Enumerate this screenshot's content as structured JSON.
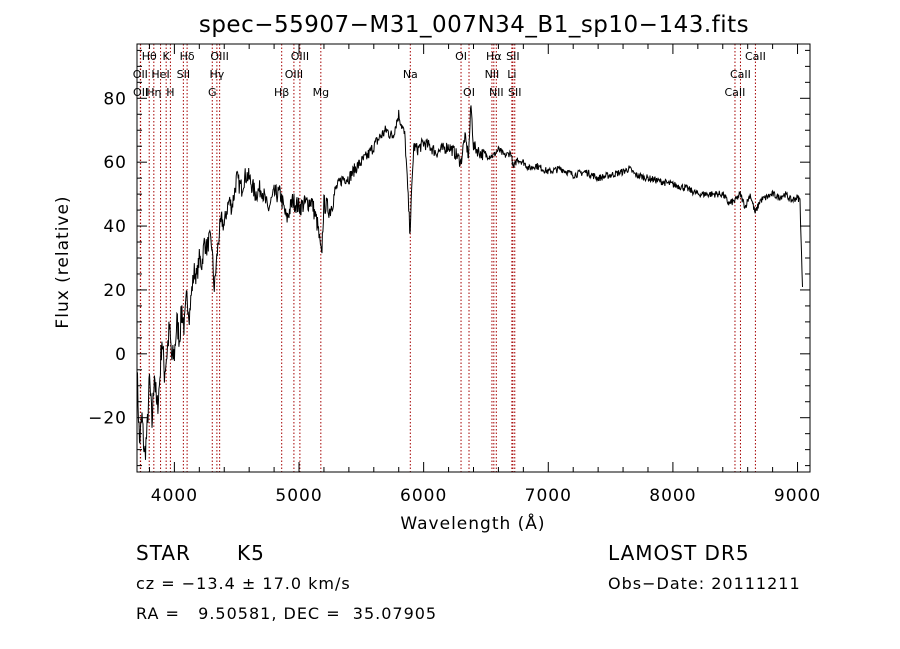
{
  "chart_data": {
    "type": "line",
    "title": "spec−55907−M31_007N34_B1_sp10−143.fits",
    "xlabel": "Wavelength (Å)",
    "ylabel": "Flux (relative)",
    "xlim": [
      3700,
      9100
    ],
    "ylim": [
      -37,
      97
    ],
    "xticks": [
      4000,
      5000,
      6000,
      7000,
      8000,
      9000
    ],
    "xtick_labels": [
      "4000",
      "5000",
      "6000",
      "7000",
      "8000",
      "9000"
    ],
    "yticks": [
      -20,
      0,
      20,
      40,
      60,
      80
    ],
    "ytick_labels": [
      "−20",
      "0",
      "20",
      "40",
      "60",
      "80"
    ],
    "grid": false,
    "series": [
      {
        "color": "#000000",
        "x": [
          3700,
          3720,
          3740,
          3760,
          3780,
          3800,
          3820,
          3840,
          3860,
          3880,
          3900,
          3920,
          3940,
          3960,
          3980,
          4000,
          4020,
          4040,
          4060,
          4080,
          4100,
          4120,
          4140,
          4160,
          4180,
          4200,
          4220,
          4240,
          4260,
          4280,
          4300,
          4320,
          4340,
          4360,
          4380,
          4400,
          4420,
          4440,
          4460,
          4480,
          4500,
          4520,
          4540,
          4560,
          4580,
          4600,
          4650,
          4700,
          4750,
          4800,
          4850,
          4900,
          4950,
          5000,
          5050,
          5100,
          5150,
          5180,
          5200,
          5250,
          5300,
          5350,
          5400,
          5450,
          5500,
          5550,
          5600,
          5650,
          5700,
          5750,
          5800,
          5850,
          5890,
          5920,
          5950,
          6000,
          6050,
          6100,
          6150,
          6200,
          6250,
          6300,
          6330,
          6360,
          6380,
          6400,
          6450,
          6500,
          6560,
          6600,
          6650,
          6700,
          6720,
          6750,
          6800,
          6850,
          6900,
          6950,
          7000,
          7100,
          7200,
          7300,
          7400,
          7500,
          7600,
          7650,
          7700,
          7800,
          7900,
          8000,
          8100,
          8200,
          8300,
          8400,
          8450,
          8500,
          8540,
          8580,
          8620,
          8660,
          8700,
          8750,
          8800,
          8850,
          8900,
          8950,
          9000,
          9020,
          9040
        ],
        "y": [
          -5,
          -28,
          -20,
          -32,
          -25,
          -8,
          -22,
          -5,
          -18,
          -10,
          5,
          -6,
          0,
          8,
          -2,
          0,
          10,
          5,
          14,
          8,
          18,
          12,
          20,
          26,
          24,
          30,
          28,
          35,
          33,
          36,
          34,
          20,
          30,
          38,
          42,
          40,
          45,
          48,
          46,
          50,
          55,
          53,
          52,
          55,
          56,
          55,
          50,
          52,
          45,
          50,
          50,
          42,
          48,
          46,
          47,
          48,
          40,
          30,
          47,
          45,
          52,
          55,
          55,
          58,
          60,
          62,
          65,
          68,
          70,
          68,
          75,
          68,
          38,
          65,
          64,
          66,
          65,
          63,
          64,
          65,
          63,
          60,
          68,
          62,
          78,
          65,
          63,
          62,
          62,
          64,
          62,
          63,
          58,
          61,
          60,
          58,
          59,
          58,
          57,
          58,
          56,
          57,
          55,
          56,
          57,
          58,
          56,
          55,
          54,
          53,
          52,
          50,
          50,
          50,
          47,
          48,
          50,
          46,
          50,
          44,
          48,
          49,
          50,
          49,
          50,
          48,
          49,
          48,
          20
        ],
        "noise": 3
      }
    ],
    "lines": [
      {
        "label": "Hθ",
        "x": 3798,
        "row": 0
      },
      {
        "label": "K",
        "x": 3934,
        "row": 0
      },
      {
        "label": "Hδ",
        "x": 4102,
        "row": 0
      },
      {
        "label": "OIII",
        "x": 4363,
        "row": 0
      },
      {
        "label": "OIII",
        "x": 5007,
        "row": 0
      },
      {
        "label": "OI",
        "x": 6300,
        "row": 0
      },
      {
        "label": "Hα",
        "x": 6563,
        "row": 0
      },
      {
        "label": "SII",
        "x": 6716,
        "row": 0
      },
      {
        "label": "CaII",
        "x": 8662,
        "row": 0
      },
      {
        "label": "OII",
        "x": 3727,
        "row": 1
      },
      {
        "label": "HeI",
        "x": 3889,
        "row": 1
      },
      {
        "label": "SII",
        "x": 4072,
        "row": 1
      },
      {
        "label": "Hγ",
        "x": 4341,
        "row": 1
      },
      {
        "label": "OIII",
        "x": 4959,
        "row": 1
      },
      {
        "label": "Na",
        "x": 5893,
        "row": 1
      },
      {
        "label": "NII",
        "x": 6548,
        "row": 1
      },
      {
        "label": "Li",
        "x": 6708,
        "row": 1
      },
      {
        "label": "CaII",
        "x": 8542,
        "row": 1
      },
      {
        "label": "OII",
        "x": 3729,
        "row": 2
      },
      {
        "label": "Hη",
        "x": 3835,
        "row": 2
      },
      {
        "label": "H",
        "x": 3968,
        "row": 2
      },
      {
        "label": "G",
        "x": 4304,
        "row": 2
      },
      {
        "label": "Hβ",
        "x": 4861,
        "row": 2
      },
      {
        "label": "Mg",
        "x": 5175,
        "row": 2
      },
      {
        "label": "OI",
        "x": 6364,
        "row": 2
      },
      {
        "label": "NII",
        "x": 6583,
        "row": 2
      },
      {
        "label": "SII",
        "x": 6731,
        "row": 2
      },
      {
        "label": "CaII",
        "x": 8498,
        "row": 2
      }
    ]
  },
  "info": {
    "class": "STAR",
    "subclass": "K5",
    "survey": "LAMOST DR5",
    "cz": "cz = −13.4 ± 17.0 km/s",
    "obsdate": "Obs−Date: 20111211",
    "radec": "RA =   9.50581, DEC =  35.07905"
  }
}
